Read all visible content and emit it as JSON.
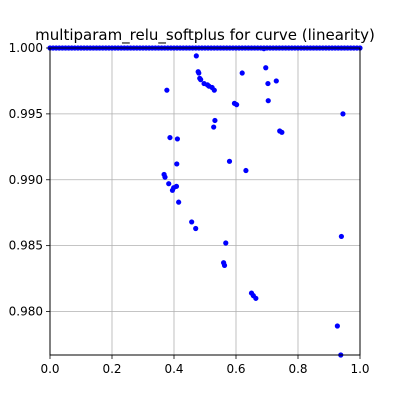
{
  "chart_data": {
    "type": "scatter",
    "title": "multiparam_relu_softplus for curve (linearity)",
    "xlabel": "",
    "ylabel": "",
    "xlim": [
      0.0,
      1.0
    ],
    "ylim": [
      0.9767,
      1.0
    ],
    "xticks": [
      0.0,
      0.2,
      0.4,
      0.6,
      0.8,
      1.0
    ],
    "xtick_labels": [
      "0.0",
      "0.2",
      "0.4",
      "0.6",
      "0.8",
      "1.0"
    ],
    "yticks": [
      0.98,
      0.985,
      0.99,
      0.995,
      1.0
    ],
    "ytick_labels": [
      "0.980",
      "0.985",
      "0.990",
      "0.995",
      "1.000"
    ],
    "grid": true,
    "legend": false,
    "series": [
      {
        "color": "#0000ff",
        "points": [
          [
            0.0,
            1.0
          ],
          [
            0.01,
            1.0
          ],
          [
            0.02,
            1.0
          ],
          [
            0.03,
            1.0
          ],
          [
            0.04,
            1.0
          ],
          [
            0.05,
            1.0
          ],
          [
            0.06,
            1.0
          ],
          [
            0.07,
            1.0
          ],
          [
            0.08,
            1.0
          ],
          [
            0.09,
            1.0
          ],
          [
            0.1,
            1.0
          ],
          [
            0.11,
            1.0
          ],
          [
            0.12,
            1.0
          ],
          [
            0.13,
            1.0
          ],
          [
            0.14,
            1.0
          ],
          [
            0.15,
            1.0
          ],
          [
            0.16,
            1.0
          ],
          [
            0.17,
            1.0
          ],
          [
            0.18,
            1.0
          ],
          [
            0.19,
            1.0
          ],
          [
            0.2,
            1.0
          ],
          [
            0.21,
            1.0
          ],
          [
            0.22,
            1.0
          ],
          [
            0.23,
            1.0
          ],
          [
            0.24,
            1.0
          ],
          [
            0.25,
            1.0
          ],
          [
            0.26,
            1.0
          ],
          [
            0.27,
            1.0
          ],
          [
            0.28,
            1.0
          ],
          [
            0.29,
            1.0
          ],
          [
            0.3,
            1.0
          ],
          [
            0.31,
            1.0
          ],
          [
            0.32,
            1.0
          ],
          [
            0.33,
            1.0
          ],
          [
            0.34,
            1.0
          ],
          [
            0.35,
            1.0
          ],
          [
            0.36,
            1.0
          ],
          [
            0.37,
            1.0
          ],
          [
            0.38,
            1.0
          ],
          [
            0.39,
            1.0
          ],
          [
            0.4,
            1.0
          ],
          [
            0.41,
            1.0
          ],
          [
            0.42,
            1.0
          ],
          [
            0.43,
            1.0
          ],
          [
            0.44,
            1.0
          ],
          [
            0.45,
            1.0
          ],
          [
            0.46,
            1.0
          ],
          [
            0.47,
            1.0
          ],
          [
            0.48,
            1.0
          ],
          [
            0.49,
            1.0
          ],
          [
            0.5,
            1.0
          ],
          [
            0.51,
            1.0
          ],
          [
            0.52,
            1.0
          ],
          [
            0.53,
            1.0
          ],
          [
            0.54,
            1.0
          ],
          [
            0.55,
            1.0
          ],
          [
            0.56,
            1.0
          ],
          [
            0.57,
            1.0
          ],
          [
            0.58,
            1.0
          ],
          [
            0.59,
            1.0
          ],
          [
            0.6,
            1.0
          ],
          [
            0.61,
            1.0
          ],
          [
            0.62,
            1.0
          ],
          [
            0.63,
            1.0
          ],
          [
            0.64,
            1.0
          ],
          [
            0.65,
            1.0
          ],
          [
            0.66,
            1.0
          ],
          [
            0.67,
            1.0
          ],
          [
            0.68,
            1.0
          ],
          [
            0.69,
            1.0
          ],
          [
            0.7,
            1.0
          ],
          [
            0.71,
            1.0
          ],
          [
            0.72,
            1.0
          ],
          [
            0.73,
            1.0
          ],
          [
            0.74,
            1.0
          ],
          [
            0.75,
            1.0
          ],
          [
            0.76,
            1.0
          ],
          [
            0.77,
            1.0
          ],
          [
            0.78,
            1.0
          ],
          [
            0.79,
            1.0
          ],
          [
            0.8,
            1.0
          ],
          [
            0.81,
            1.0
          ],
          [
            0.82,
            1.0
          ],
          [
            0.83,
            1.0
          ],
          [
            0.84,
            1.0
          ],
          [
            0.85,
            1.0
          ],
          [
            0.86,
            1.0
          ],
          [
            0.87,
            1.0
          ],
          [
            0.88,
            1.0
          ],
          [
            0.89,
            1.0
          ],
          [
            0.9,
            1.0
          ],
          [
            0.91,
            1.0
          ],
          [
            0.92,
            1.0
          ],
          [
            0.93,
            1.0
          ],
          [
            0.94,
            1.0
          ],
          [
            0.95,
            1.0
          ],
          [
            0.96,
            1.0
          ],
          [
            0.97,
            1.0
          ],
          [
            0.98,
            1.0
          ],
          [
            0.99,
            1.0
          ],
          [
            1.0,
            1.0
          ],
          [
            0.472,
            0.9994
          ],
          [
            0.69,
            0.99995
          ],
          [
            0.696,
            0.9985
          ],
          [
            0.478,
            0.9982
          ],
          [
            0.48,
            0.9981
          ],
          [
            0.62,
            0.9981
          ],
          [
            0.483,
            0.9977
          ],
          [
            0.486,
            0.9976
          ],
          [
            0.73,
            0.9975
          ],
          [
            0.497,
            0.9973
          ],
          [
            0.703,
            0.9973
          ],
          [
            0.508,
            0.9972
          ],
          [
            0.513,
            0.9971
          ],
          [
            0.523,
            0.997
          ],
          [
            0.53,
            0.9968
          ],
          [
            0.377,
            0.9968
          ],
          [
            0.595,
            0.9958
          ],
          [
            0.602,
            0.9957
          ],
          [
            0.704,
            0.996
          ],
          [
            0.945,
            0.995
          ],
          [
            0.532,
            0.9945
          ],
          [
            0.528,
            0.994
          ],
          [
            0.741,
            0.9937
          ],
          [
            0.748,
            0.9936
          ],
          [
            0.387,
            0.9932
          ],
          [
            0.411,
            0.9931
          ],
          [
            0.579,
            0.9914
          ],
          [
            0.409,
            0.9912
          ],
          [
            0.632,
            0.9907
          ],
          [
            0.368,
            0.9904
          ],
          [
            0.371,
            0.9902
          ],
          [
            0.383,
            0.9897
          ],
          [
            0.408,
            0.9895
          ],
          [
            0.399,
            0.9894
          ],
          [
            0.395,
            0.9892
          ],
          [
            0.415,
            0.9883
          ],
          [
            0.457,
            0.9868
          ],
          [
            0.47,
            0.9863
          ],
          [
            0.94,
            0.9857
          ],
          [
            0.567,
            0.9852
          ],
          [
            0.56,
            0.9837
          ],
          [
            0.563,
            0.9835
          ],
          [
            0.65,
            0.9814
          ],
          [
            0.656,
            0.9812
          ],
          [
            0.664,
            0.981
          ],
          [
            0.927,
            0.9789
          ],
          [
            0.938,
            0.9767
          ]
        ]
      }
    ]
  }
}
